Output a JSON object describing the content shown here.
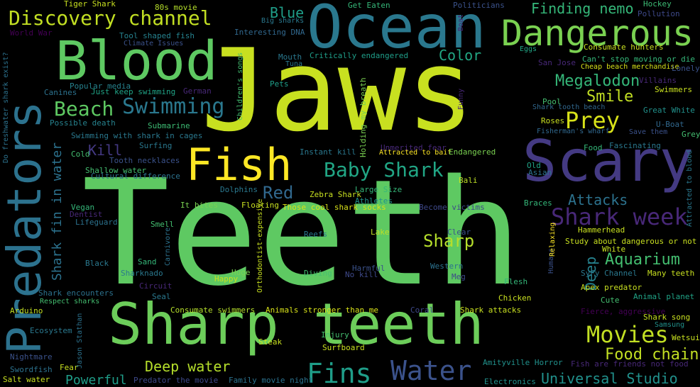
{
  "words": [
    {
      "text": "Teeth",
      "color": "#5ec962"
    },
    {
      "text": "Jaws",
      "color": "#c8e020"
    },
    {
      "text": "Ocean",
      "color": "#2a788e"
    },
    {
      "text": "Blood",
      "color": "#5ec962"
    },
    {
      "text": "Predators",
      "color": "#2c728e"
    },
    {
      "text": "Sharp teeth",
      "color": "#6ccd5a"
    },
    {
      "text": "Scary",
      "color": "#443a83"
    },
    {
      "text": "Dangerous",
      "color": "#7ad151"
    },
    {
      "text": "Fish",
      "color": "#fde725"
    },
    {
      "text": "Discovery channel",
      "color": "#c2df23"
    },
    {
      "text": "Beach",
      "color": "#5ec962"
    },
    {
      "text": "Swimming",
      "color": "#2a788e"
    },
    {
      "text": "Baby Shark",
      "color": "#21a685"
    },
    {
      "text": "Shark week",
      "color": "#482878"
    },
    {
      "text": "Water",
      "color": "#3b528b"
    },
    {
      "text": "Fins",
      "color": "#1f9e89"
    },
    {
      "text": "Movies",
      "color": "#c2df23"
    },
    {
      "text": "Prey",
      "color": "#d8e219"
    },
    {
      "text": "Megalodon",
      "color": "#35b779"
    },
    {
      "text": "Smile",
      "color": "#c2df23"
    },
    {
      "text": "Finding nemo",
      "color": "#35b779"
    },
    {
      "text": "Blue",
      "color": "#1f9e89"
    },
    {
      "text": "Color",
      "color": "#22a884"
    },
    {
      "text": "Red",
      "color": "#31688e"
    },
    {
      "text": "Kill",
      "color": "#443983"
    },
    {
      "text": "Sharp",
      "color": "#b5de2b"
    },
    {
      "text": "Aquarium",
      "color": "#44bf70"
    },
    {
      "text": "Attacks",
      "color": "#2c728e"
    },
    {
      "text": "Deep water",
      "color": "#b5de2b"
    },
    {
      "text": "Food chain",
      "color": "#c2df23"
    },
    {
      "text": "Universal Studio",
      "color": "#21918c"
    },
    {
      "text": "Powerful",
      "color": "#1f9e89"
    },
    {
      "text": "Shark fin in water",
      "color": "#2c728e"
    },
    {
      "text": "Deep",
      "color": "#26828e"
    },
    {
      "text": "Tiger Shark",
      "color": "#c8e020"
    },
    {
      "text": "80s movie",
      "color": "#b5de2b"
    },
    {
      "text": "Get Eaten",
      "color": "#35b779"
    },
    {
      "text": "Politicians",
      "color": "#3b528b"
    },
    {
      "text": "Hockey",
      "color": "#3dbc74"
    },
    {
      "text": "Pollution",
      "color": "#3e4989"
    },
    {
      "text": "Big sharks",
      "color": "#2a788e"
    },
    {
      "text": "World War",
      "color": "#440154"
    },
    {
      "text": "Tool shaped fish",
      "color": "#26828e"
    },
    {
      "text": "Climate Issues",
      "color": "#3b528b"
    },
    {
      "text": "Interesting DNA",
      "color": "#31688e"
    },
    {
      "text": "Consumate hunters",
      "color": "#c8e020"
    },
    {
      "text": "Eggs",
      "color": "#21a685"
    },
    {
      "text": "Mouth",
      "color": "#2a788e"
    },
    {
      "text": "Tuna",
      "color": "#2a788e"
    },
    {
      "text": "Critically endangered",
      "color": "#1f9e89"
    },
    {
      "text": "Can't stop moving or die",
      "color": "#35b779"
    },
    {
      "text": "San Jose",
      "color": "#482878"
    },
    {
      "text": "Cheap beach merchandise",
      "color": "#d8e219"
    },
    {
      "text": "Lonely",
      "color": "#3b528b"
    },
    {
      "text": "Popular media",
      "color": "#26828e"
    },
    {
      "text": "Just keep swimming",
      "color": "#20a386"
    },
    {
      "text": "German",
      "color": "#482878"
    },
    {
      "text": "Canines",
      "color": "#2c728e"
    },
    {
      "text": "Pets",
      "color": "#1f9e89"
    },
    {
      "text": "Villains",
      "color": "#482878"
    },
    {
      "text": "Swimmers",
      "color": "#c8e020"
    },
    {
      "text": "Pool",
      "color": "#44bf70"
    },
    {
      "text": "Shark tooth beach",
      "color": "#31688e"
    },
    {
      "text": "Great White",
      "color": "#21918c"
    },
    {
      "text": "Submarine",
      "color": "#3dbc74"
    },
    {
      "text": "Possible death",
      "color": "#26828e"
    },
    {
      "text": "Swimming with shark in cages",
      "color": "#2a788e"
    },
    {
      "text": "Roses",
      "color": "#c8e020"
    },
    {
      "text": "Fisherman's wharf",
      "color": "#31688e"
    },
    {
      "text": "U-Boat",
      "color": "#31688e"
    },
    {
      "text": "Save them",
      "color": "#3b528b"
    },
    {
      "text": "Grey",
      "color": "#44bf70"
    },
    {
      "text": "Surfing",
      "color": "#2a788e"
    },
    {
      "text": "Cold",
      "color": "#44bf70"
    },
    {
      "text": "Tooth necklaces",
      "color": "#3b528b"
    },
    {
      "text": "Unmerited fear",
      "color": "#482878"
    },
    {
      "text": "Instant kill",
      "color": "#2a788e"
    },
    {
      "text": "Attracted to bait",
      "color": "#fde725"
    },
    {
      "text": "Endangered",
      "color": "#7ad151"
    },
    {
      "text": "Food",
      "color": "#35b779"
    },
    {
      "text": "Fascinating",
      "color": "#2a788e"
    },
    {
      "text": "Old",
      "color": "#20a386"
    },
    {
      "text": "Asian",
      "color": "#2c728e"
    },
    {
      "text": "Shallow water",
      "color": "#44bf70"
    },
    {
      "text": "Cultural difference",
      "color": "#2c728e"
    },
    {
      "text": "Dolphins",
      "color": "#2a788e"
    },
    {
      "text": "Bali",
      "color": "#bddf26"
    },
    {
      "text": "Large Size",
      "color": "#35b779"
    },
    {
      "text": "Zebra Shark",
      "color": "#c8e020"
    },
    {
      "text": "Vegan",
      "color": "#35b779"
    },
    {
      "text": "Dentist",
      "color": "#482878"
    },
    {
      "text": "Lifeguard",
      "color": "#2c728e"
    },
    {
      "text": "It bites",
      "color": "#7ad151"
    },
    {
      "text": "Floating",
      "color": "#c8e020"
    },
    {
      "text": "Athletes",
      "color": "#21918c"
    },
    {
      "text": "Those cool shark socks",
      "color": "#d8e219"
    },
    {
      "text": "Become victims",
      "color": "#3e4989"
    },
    {
      "text": "Braces",
      "color": "#35b779"
    },
    {
      "text": "Hammerhead",
      "color": "#c8e020"
    },
    {
      "text": "Smell",
      "color": "#44bf70"
    },
    {
      "text": "Reefs",
      "color": "#2a788e"
    },
    {
      "text": "Lake",
      "color": "#c2df23"
    },
    {
      "text": "Clear",
      "color": "#3b528b"
    },
    {
      "text": "Study about dangerous or not",
      "color": "#c8e020"
    },
    {
      "text": "White",
      "color": "#c8e020"
    },
    {
      "text": "Black",
      "color": "#2a788e"
    },
    {
      "text": "Sand",
      "color": "#35b779"
    },
    {
      "text": "Harmful",
      "color": "#3b528b"
    },
    {
      "text": "Western",
      "color": "#2c728e"
    },
    {
      "text": "SyFy Channel",
      "color": "#2a788e"
    },
    {
      "text": "Many teeth",
      "color": "#c8e020"
    },
    {
      "text": "Sharknado",
      "color": "#2a788e"
    },
    {
      "text": "Happy",
      "color": "#c8e020"
    },
    {
      "text": "Huge",
      "color": "#7ad151"
    },
    {
      "text": "Diving",
      "color": "#44bf70"
    },
    {
      "text": "No kill",
      "color": "#3e4989"
    },
    {
      "text": "Meg",
      "color": "#3e4989"
    },
    {
      "text": "Apex predator",
      "color": "#c8e020"
    },
    {
      "text": "Circuit",
      "color": "#482878"
    },
    {
      "text": "Seal",
      "color": "#2a788e"
    },
    {
      "text": "Flesh",
      "color": "#35b779"
    },
    {
      "text": "Animal planet",
      "color": "#20a386"
    },
    {
      "text": "Shark encounters",
      "color": "#2c728e"
    },
    {
      "text": "Respect sharks",
      "color": "#44bf70"
    },
    {
      "text": "Chicken",
      "color": "#c8e020"
    },
    {
      "text": "Cute",
      "color": "#44bf70"
    },
    {
      "text": "Arduino",
      "color": "#c2df23"
    },
    {
      "text": "Consumate swimmers",
      "color": "#b5de2b"
    },
    {
      "text": "Animals stronger than me",
      "color": "#d8e219"
    },
    {
      "text": "Coral",
      "color": "#3e4989"
    },
    {
      "text": "Shark attacks",
      "color": "#c8e020"
    },
    {
      "text": "Fierce, aggressive",
      "color": "#440154"
    },
    {
      "text": "Shark song",
      "color": "#c8e020"
    },
    {
      "text": "Samsung",
      "color": "#21918c"
    },
    {
      "text": "Ecosystem",
      "color": "#2a788e"
    },
    {
      "text": "Injury",
      "color": "#44bf70"
    },
    {
      "text": "Wetsuit",
      "color": "#c8e020"
    },
    {
      "text": "Steak",
      "color": "#c8e020"
    },
    {
      "text": "Surfboard",
      "color": "#c8e020"
    },
    {
      "text": "Nightmare",
      "color": "#3b528b"
    },
    {
      "text": "Swordfish",
      "color": "#2c728e"
    },
    {
      "text": "Fear",
      "color": "#c8e020"
    },
    {
      "text": "Amityville Horror",
      "color": "#21918c"
    },
    {
      "text": "Fish are friends not food",
      "color": "#482878"
    },
    {
      "text": "Salt water",
      "color": "#c8e020"
    },
    {
      "text": "Predator the movie",
      "color": "#3e4989"
    },
    {
      "text": "Family movie night",
      "color": "#2c728e"
    },
    {
      "text": "Electronics",
      "color": "#21918c"
    },
    {
      "text": "Do freshwater shark exist?",
      "color": "#2c728e"
    },
    {
      "text": "Children's songs",
      "color": "#44bf70"
    },
    {
      "text": "Holding my breath",
      "color": "#7ad151"
    },
    {
      "text": "Funny",
      "color": "#482878"
    },
    {
      "text": "Boat",
      "color": "#482878"
    },
    {
      "text": "Carnivore",
      "color": "#2c728e"
    },
    {
      "text": "Orthodontist-expensive",
      "color": "#c8e020"
    },
    {
      "text": "Humans",
      "color": "#3b528b"
    },
    {
      "text": "Relaxing",
      "color": "#fde725"
    },
    {
      "text": "Attracted to blood",
      "color": "#2a788e"
    },
    {
      "text": "Jason Stathan",
      "color": "#2c728e"
    }
  ]
}
